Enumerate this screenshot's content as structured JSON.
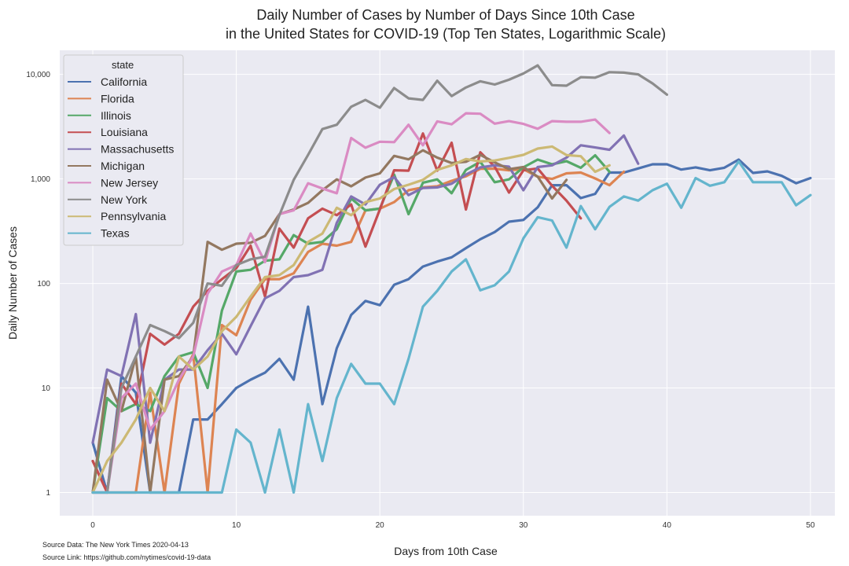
{
  "chart_data": {
    "type": "line",
    "title_line1": "Daily Number of Cases by Number of Days Since 10th Case",
    "title_line2": "in the United States for COVID-19 (Top Ten States, Logarithmic Scale)",
    "xlabel": "Days from 10th Case",
    "ylabel": "Daily Number of Cases",
    "xlim": [
      -2.3,
      51.7
    ],
    "ylim": [
      0.6,
      17000
    ],
    "y_scale": "log",
    "grid": true,
    "x_ticks": [
      0,
      10,
      20,
      30,
      40,
      50
    ],
    "x_tick_labels": [
      "0",
      "10",
      "20",
      "30",
      "40",
      "50"
    ],
    "y_ticks": [
      1,
      10,
      100,
      1000,
      10000
    ],
    "y_tick_labels": [
      "1",
      "10",
      "100",
      "1,000",
      "10,000"
    ],
    "legend": {
      "title": "state",
      "position": "top-left"
    },
    "series": [
      {
        "name": "California",
        "color": "#4c72b0",
        "values": [
          3,
          1,
          13,
          9,
          1,
          1,
          1,
          5,
          5,
          7,
          10,
          12,
          14,
          19,
          12,
          60,
          7,
          24,
          50,
          68,
          62,
          97,
          110,
          145,
          162,
          178,
          218,
          265,
          310,
          390,
          405,
          535,
          870,
          870,
          655,
          720,
          1150,
          1150,
          1260,
          1380,
          1380,
          1230,
          1290,
          1210,
          1280,
          1530,
          1140,
          1180,
          1070,
          910,
          1020
        ]
      },
      {
        "name": "Florida",
        "color": "#dd8452",
        "values": [
          2,
          1,
          1,
          1,
          9,
          1,
          11,
          21,
          1,
          40,
          32,
          70,
          110,
          110,
          125,
          200,
          240,
          230,
          250,
          500,
          520,
          600,
          780,
          830,
          850,
          960,
          1060,
          1250,
          1250,
          1210,
          1240,
          1050,
          1000,
          1130,
          1150,
          1010,
          870,
          1170
        ]
      },
      {
        "name": "Illinois",
        "color": "#55a868",
        "values": [
          1,
          8,
          6,
          7,
          6,
          13,
          20,
          22,
          10,
          55,
          130,
          135,
          165,
          170,
          290,
          240,
          250,
          330,
          650,
          500,
          520,
          1100,
          460,
          920,
          990,
          730,
          1220,
          1460,
          930,
          990,
          1290,
          1530,
          1380,
          1480,
          1280,
          1680,
          1170
        ]
      },
      {
        "name": "Louisiana",
        "color": "#c44e52",
        "values": [
          2,
          1,
          11,
          7,
          33,
          26,
          33,
          60,
          85,
          110,
          140,
          230,
          75,
          335,
          220,
          420,
          520,
          450,
          570,
          225,
          510,
          1210,
          1200,
          2720,
          1200,
          2220,
          510,
          1800,
          1310,
          740,
          1210,
          1260,
          860,
          620,
          420
        ]
      },
      {
        "name": "Massachusetts",
        "color": "#8172b3",
        "values": [
          3,
          15,
          13,
          51,
          3,
          12,
          15,
          15,
          23,
          33,
          21,
          39,
          72,
          85,
          115,
          120,
          135,
          380,
          680,
          570,
          880,
          1040,
          700,
          820,
          830,
          900,
          1100,
          1290,
          1350,
          1310,
          780,
          1300,
          1350,
          1600,
          2100,
          2000,
          1900,
          2600,
          1400
        ]
      },
      {
        "name": "Michigan",
        "color": "#937860",
        "values": [
          1,
          12,
          6,
          20,
          1,
          12,
          13,
          20,
          250,
          210,
          240,
          245,
          285,
          460,
          510,
          590,
          780,
          990,
          850,
          1030,
          1130,
          1660,
          1540,
          1880,
          1600,
          1420,
          1460,
          1700,
          1440,
          1240,
          1300,
          1050,
          650,
          980
        ]
      },
      {
        "name": "New Jersey",
        "color": "#da8bc3",
        "values": [
          1,
          1,
          8,
          11,
          4,
          6,
          12,
          20,
          80,
          130,
          150,
          300,
          160,
          460,
          500,
          910,
          810,
          730,
          2460,
          1990,
          2270,
          2250,
          3300,
          2100,
          3550,
          3330,
          4250,
          4200,
          3380,
          3570,
          3360,
          3020,
          3570,
          3520,
          3520,
          3700,
          2750
        ]
      },
      {
        "name": "New York",
        "color": "#8c8c8c",
        "values": [
          1,
          1,
          10,
          20,
          40,
          35,
          30,
          42,
          100,
          95,
          150,
          170,
          180,
          450,
          980,
          1700,
          3000,
          3300,
          4900,
          5700,
          4800,
          7400,
          5900,
          5700,
          8700,
          6200,
          7500,
          8600,
          8000,
          8900,
          10200,
          12200,
          7900,
          7800,
          9400,
          9300,
          10500,
          10400,
          10000,
          8200,
          6400
        ]
      },
      {
        "name": "Pennsylvania",
        "color": "#ccb974",
        "values": [
          1,
          2,
          3,
          5,
          10,
          6,
          20,
          15,
          20,
          35,
          48,
          75,
          115,
          120,
          150,
          250,
          300,
          530,
          450,
          600,
          650,
          800,
          880,
          980,
          1220,
          1350,
          1550,
          1470,
          1500,
          1590,
          1700,
          1950,
          2040,
          1690,
          1650,
          1170,
          1350
        ]
      },
      {
        "name": "Texas",
        "color": "#64b5cd",
        "values": [
          1,
          1,
          1,
          1,
          1,
          1,
          1,
          1,
          1,
          1,
          4,
          3,
          1,
          4,
          1,
          7,
          2,
          8,
          17,
          11,
          11,
          7,
          19,
          60,
          85,
          130,
          170,
          86,
          96,
          130,
          270,
          430,
          400,
          220,
          550,
          330,
          540,
          680,
          620,
          780,
          900,
          530,
          1020,
          860,
          930,
          1470,
          930,
          930,
          930,
          560,
          700
        ]
      }
    ]
  },
  "source": {
    "data_line": "Source Data: The New York Times 2020-04-13",
    "link_line": "Source Link: https://github.com/nytimes/covid-19-data"
  }
}
